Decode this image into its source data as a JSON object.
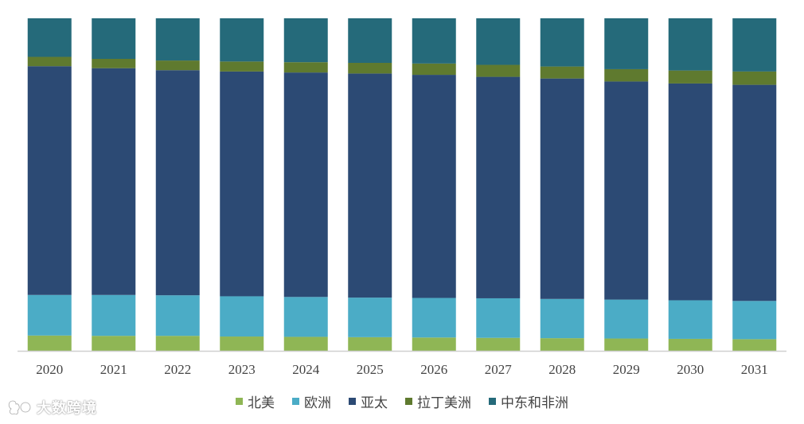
{
  "chart_data": {
    "type": "bar",
    "stacked": true,
    "percent_stacked": true,
    "categories": [
      "2020",
      "2021",
      "2022",
      "2023",
      "2024",
      "2025",
      "2026",
      "2027",
      "2028",
      "2029",
      "2030",
      "2031"
    ],
    "series": [
      {
        "name": "北美",
        "color": "#8fb655",
        "values": [
          4.6,
          4.5,
          4.5,
          4.3,
          4.2,
          4.1,
          4.0,
          3.9,
          3.8,
          3.7,
          3.6,
          3.5
        ]
      },
      {
        "name": "欧洲",
        "color": "#4bacc6",
        "values": [
          12.2,
          12.3,
          12.2,
          12.1,
          12.0,
          11.9,
          11.9,
          11.9,
          11.8,
          11.7,
          11.6,
          11.5
        ]
      },
      {
        "name": "亚太",
        "color": "#2c4a74",
        "values": [
          68.8,
          68.2,
          67.7,
          67.6,
          67.5,
          67.4,
          67.1,
          66.6,
          66.3,
          65.6,
          65.2,
          65.0
        ]
      },
      {
        "name": "拉丁美洲",
        "color": "#5f7a2f",
        "values": [
          2.8,
          2.8,
          2.9,
          3.0,
          3.1,
          3.2,
          3.4,
          3.6,
          3.6,
          3.7,
          3.9,
          4.0
        ]
      },
      {
        "name": "中东和非洲",
        "color": "#256a7a",
        "values": [
          11.6,
          12.2,
          12.7,
          13.0,
          13.2,
          13.4,
          13.6,
          14.0,
          14.5,
          15.3,
          15.7,
          16.0
        ]
      }
    ],
    "ylim": [
      0,
      100
    ],
    "grid": false,
    "legend_position": "bottom",
    "title": "",
    "xlabel": "",
    "ylabel": ""
  },
  "watermark": {
    "text": "大数跨境",
    "icon": "brand-logo-icon"
  }
}
